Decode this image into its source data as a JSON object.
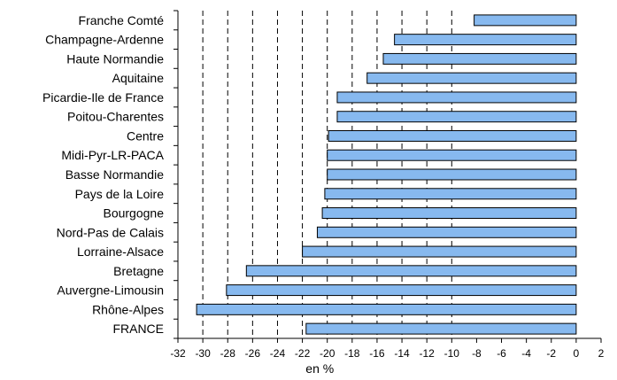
{
  "chart_data": {
    "type": "bar",
    "orientation": "horizontal",
    "categories": [
      "Franche Comté",
      "Champagne-Ardenne",
      "Haute Normandie",
      "Aquitaine",
      "Picardie-Ile de France",
      "Poitou-Charentes",
      "Centre",
      "Midi-Pyr-LR-PACA",
      "Basse Normandie",
      "Pays de la Loire",
      "Bourgogne",
      "Nord-Pas de Calais",
      "Lorraine-Alsace",
      "Bretagne",
      "Auvergne-Limousin",
      "Rhône-Alpes",
      "FRANCE"
    ],
    "values": [
      -8.2,
      -14.6,
      -15.5,
      -16.8,
      -19.2,
      -19.2,
      -19.9,
      -20.0,
      -20.0,
      -20.2,
      -20.4,
      -20.8,
      -22.0,
      -26.5,
      -28.1,
      -30.5,
      -21.7
    ],
    "xlabel": "en %",
    "ylabel": "",
    "xlim": [
      -32,
      2
    ],
    "x_ticks": [
      -32,
      -30,
      -28,
      -26,
      -24,
      -22,
      -20,
      -18,
      -16,
      -14,
      -12,
      -10,
      -8,
      -6,
      -4,
      -2,
      0,
      2
    ],
    "dashed_gridlines_at": [
      -30,
      -28,
      -26,
      -24,
      -22,
      -20,
      -18,
      -16,
      -14,
      -12,
      -10
    ],
    "bar_color": "#87b9ef",
    "bar_stroke": "#000000"
  }
}
